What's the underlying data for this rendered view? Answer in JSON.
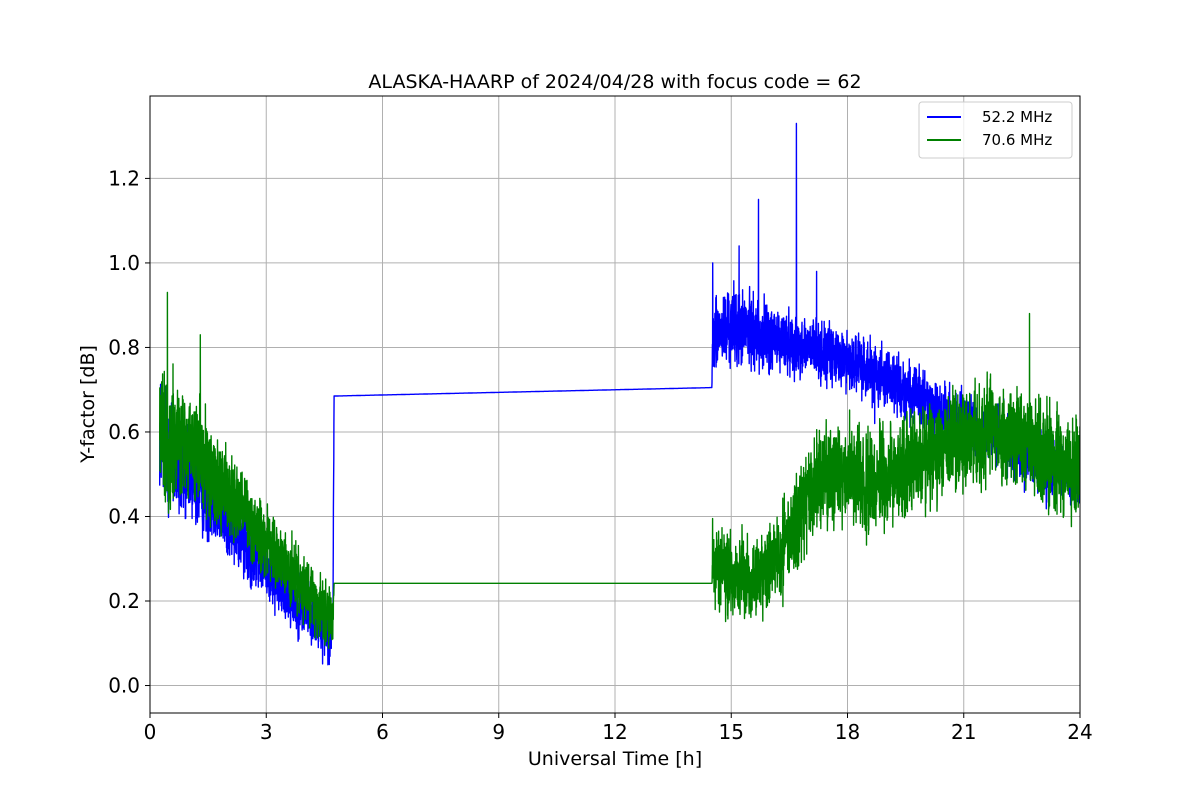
{
  "chart_data": {
    "type": "line",
    "title": "ALASKA-HAARP of 2024/04/28 with focus code = 62",
    "xlabel": "Universal Time [h]",
    "ylabel": "Y-factor [dB]",
    "xlim": [
      0,
      24
    ],
    "ylim": [
      -0.065,
      1.395
    ],
    "xticks": [
      0,
      3,
      6,
      9,
      12,
      15,
      18,
      21,
      24
    ],
    "xtick_labels": [
      "0",
      "3",
      "6",
      "9",
      "12",
      "15",
      "18",
      "21",
      "24"
    ],
    "yticks": [
      0.0,
      0.2,
      0.4,
      0.6,
      0.8,
      1.0,
      1.2
    ],
    "ytick_labels": [
      "0.0",
      "0.2",
      "0.4",
      "0.6",
      "0.8",
      "1.0",
      "1.2"
    ],
    "grid": true,
    "legend_position": "top-right",
    "series": [
      {
        "name": "52.2 MHz",
        "color": "#0000ff",
        "x": [
          0.25,
          0.5,
          0.75,
          1.0,
          1.5,
          2.0,
          2.5,
          3.0,
          3.5,
          4.0,
          4.5,
          4.72,
          4.75,
          14.5,
          14.52,
          15.0,
          15.5,
          16.0,
          16.5,
          17.0,
          17.5,
          18.0,
          18.5,
          19.0,
          19.5,
          20.0,
          20.5,
          21.0,
          21.5,
          22.0,
          22.5,
          23.0,
          23.5,
          24.0
        ],
        "y": [
          0.6,
          0.55,
          0.52,
          0.5,
          0.45,
          0.4,
          0.33,
          0.28,
          0.22,
          0.18,
          0.14,
          0.13,
          0.685,
          0.705,
          0.82,
          0.85,
          0.84,
          0.82,
          0.81,
          0.8,
          0.78,
          0.77,
          0.75,
          0.73,
          0.7,
          0.67,
          0.64,
          0.62,
          0.6,
          0.58,
          0.55,
          0.52,
          0.5,
          0.48
        ],
        "amplitude": [
          0.12,
          0.12,
          0.12,
          0.1,
          0.09,
          0.08,
          0.07,
          0.06,
          0.06,
          0.06,
          0.06,
          0.06,
          0.0,
          0.0,
          0.07,
          0.08,
          0.07,
          0.07,
          0.06,
          0.06,
          0.06,
          0.06,
          0.06,
          0.06,
          0.06,
          0.06,
          0.06,
          0.06,
          0.06,
          0.06,
          0.06,
          0.06,
          0.06,
          0.06
        ],
        "spikes": [
          [
            14.52,
            1.0
          ],
          [
            15.2,
            1.04
          ],
          [
            15.7,
            1.15
          ],
          [
            16.68,
            1.33
          ],
          [
            17.2,
            0.98
          ],
          [
            18.7,
            0.62
          ]
        ]
      },
      {
        "name": "70.6 MHz",
        "color": "#008000",
        "x": [
          0.25,
          0.5,
          0.75,
          1.0,
          1.5,
          2.0,
          2.5,
          3.0,
          3.5,
          4.0,
          4.5,
          4.72,
          4.75,
          14.5,
          14.52,
          15.0,
          15.5,
          16.0,
          16.5,
          17.0,
          17.5,
          18.0,
          18.5,
          19.0,
          19.5,
          20.0,
          20.5,
          21.0,
          21.5,
          22.0,
          22.5,
          23.0,
          23.5,
          24.0
        ],
        "y": [
          0.6,
          0.58,
          0.57,
          0.56,
          0.52,
          0.46,
          0.4,
          0.34,
          0.28,
          0.22,
          0.18,
          0.16,
          0.242,
          0.242,
          0.28,
          0.26,
          0.24,
          0.28,
          0.36,
          0.44,
          0.5,
          0.5,
          0.48,
          0.5,
          0.52,
          0.55,
          0.56,
          0.58,
          0.6,
          0.6,
          0.58,
          0.55,
          0.52,
          0.5
        ],
        "amplitude": [
          0.13,
          0.13,
          0.12,
          0.11,
          0.1,
          0.09,
          0.08,
          0.07,
          0.07,
          0.06,
          0.06,
          0.06,
          0.0,
          0.0,
          0.08,
          0.08,
          0.08,
          0.08,
          0.1,
          0.1,
          0.1,
          0.1,
          0.1,
          0.1,
          0.1,
          0.1,
          0.1,
          0.1,
          0.1,
          0.1,
          0.1,
          0.1,
          0.1,
          0.1
        ],
        "spikes": [
          [
            0.45,
            0.93
          ],
          [
            1.3,
            0.83
          ],
          [
            22.7,
            0.88
          ],
          [
            23.9,
            0.64
          ]
        ]
      }
    ]
  }
}
